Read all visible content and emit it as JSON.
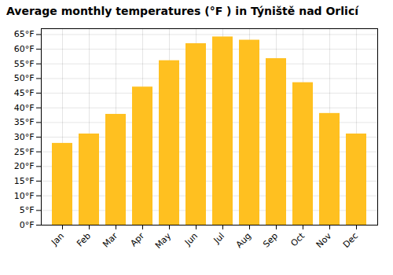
{
  "chart_data": {
    "type": "bar",
    "title": "Average monthly temperatures (°F ) in Týniště nad Orlicí",
    "categories": [
      "Jan",
      "Feb",
      "Mar",
      "Apr",
      "May",
      "Jun",
      "Jul",
      "Aug",
      "Sep",
      "Oct",
      "Nov",
      "Dec"
    ],
    "values": [
      27.9,
      31.1,
      37.8,
      47.1,
      56.1,
      61.9,
      64.2,
      63.1,
      56.8,
      48.6,
      38.1,
      31.1
    ],
    "color": "#FFC020",
    "ylim": [
      0,
      67
    ],
    "yticks": [
      {
        "value": 0,
        "label": "0°F"
      },
      {
        "value": 5,
        "label": "5°F"
      },
      {
        "value": 10,
        "label": "10°F"
      },
      {
        "value": 15,
        "label": "15°F"
      },
      {
        "value": 20,
        "label": "20°F"
      },
      {
        "value": 25,
        "label": "25°F"
      },
      {
        "value": 30,
        "label": "30°F"
      },
      {
        "value": 35,
        "label": "35°F"
      },
      {
        "value": 40,
        "label": "40°F"
      },
      {
        "value": 45,
        "label": "45°F"
      },
      {
        "value": 50,
        "label": "50°F"
      },
      {
        "value": 55,
        "label": "55°F"
      },
      {
        "value": 60,
        "label": "60°F"
      },
      {
        "value": 65,
        "label": "65°F"
      }
    ],
    "grid": true
  }
}
